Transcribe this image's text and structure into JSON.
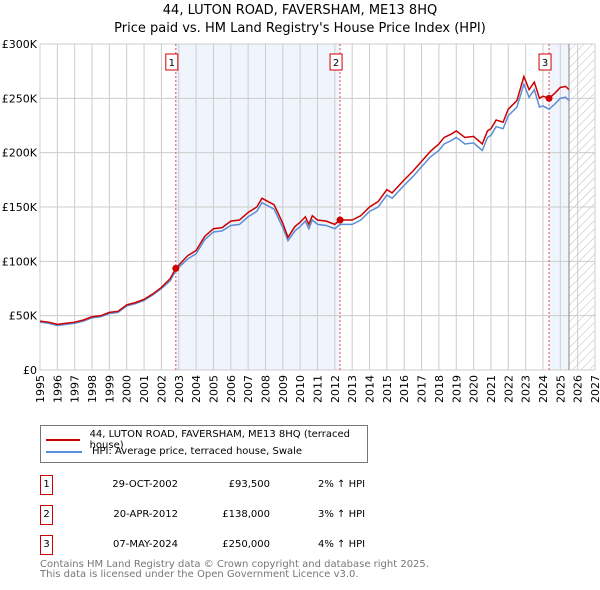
{
  "chart_data": {
    "type": "line",
    "title": "44, LUTON ROAD, FAVERSHAM, ME13 8HQ",
    "subtitle": "Price paid vs. HM Land Registry's House Price Index (HPI)",
    "xlim": [
      1995,
      2027
    ],
    "ylim": [
      0,
      300000
    ],
    "yticks": [
      {
        "v": 0,
        "label": "£0"
      },
      {
        "v": 50000,
        "label": "£50K"
      },
      {
        "v": 100000,
        "label": "£100K"
      },
      {
        "v": 150000,
        "label": "£150K"
      },
      {
        "v": 200000,
        "label": "£200K"
      },
      {
        "v": 250000,
        "label": "£250K"
      },
      {
        "v": 300000,
        "label": "£300K"
      }
    ],
    "xticks": [
      1995,
      1996,
      1997,
      1998,
      1999,
      2000,
      2001,
      2002,
      2003,
      2004,
      2005,
      2006,
      2007,
      2008,
      2009,
      2010,
      2011,
      2012,
      2013,
      2014,
      2015,
      2016,
      2017,
      2018,
      2019,
      2020,
      2021,
      2022,
      2023,
      2024,
      2025,
      2026,
      2027
    ],
    "data_end": 2025.5,
    "series": [
      {
        "name": "44, LUTON ROAD, FAVERSHAM, ME13 8HQ (terraced house)",
        "color": "#cc0000",
        "x": [
          1995,
          1995.5,
          1996,
          1996.5,
          1997,
          1997.5,
          1998,
          1998.5,
          1999,
          1999.5,
          2000,
          2000.5,
          2001,
          2001.5,
          2002,
          2002.5,
          2002.83,
          2003.5,
          2004,
          2004.5,
          2005,
          2005.5,
          2006,
          2006.5,
          2007,
          2007.5,
          2007.8,
          2008.5,
          2009,
          2009.3,
          2009.7,
          2010,
          2010.3,
          2010.5,
          2010.7,
          2011,
          2011.5,
          2012,
          2012.3,
          2013,
          2013.5,
          2014,
          2014.5,
          2015,
          2015.3,
          2016,
          2016.5,
          2017,
          2017.5,
          2018,
          2018.3,
          2018.7,
          2019,
          2019.5,
          2020,
          2020.5,
          2020.8,
          2021,
          2021.3,
          2021.7,
          2022,
          2022.5,
          2022.9,
          2023.2,
          2023.5,
          2023.8,
          2024,
          2024.35,
          2024.7,
          2025,
          2025.3,
          2025.5
        ],
        "y": [
          45000,
          44000,
          42000,
          43000,
          44000,
          46000,
          49000,
          50000,
          53000,
          54000,
          60000,
          62000,
          65000,
          70000,
          76000,
          84000,
          93500,
          105000,
          110000,
          123000,
          130000,
          131000,
          137000,
          138000,
          145000,
          150000,
          158000,
          152000,
          135000,
          122000,
          132000,
          136000,
          141000,
          134000,
          142000,
          138000,
          137000,
          134000,
          138000,
          138000,
          142000,
          150000,
          155000,
          166000,
          163000,
          175000,
          183000,
          192000,
          201000,
          208000,
          214000,
          217000,
          220000,
          214000,
          215000,
          208000,
          220000,
          222000,
          230000,
          228000,
          240000,
          248000,
          270000,
          258000,
          265000,
          250000,
          252000,
          250000,
          255000,
          260000,
          261000,
          258000
        ]
      },
      {
        "name": "HPI: Average price, terraced house, Swale",
        "color": "#5b8ed6",
        "x": [
          1995,
          1995.5,
          1996,
          1996.5,
          1997,
          1997.5,
          1998,
          1998.5,
          1999,
          1999.5,
          2000,
          2000.5,
          2001,
          2001.5,
          2002,
          2002.5,
          2002.83,
          2003.5,
          2004,
          2004.5,
          2005,
          2005.5,
          2006,
          2006.5,
          2007,
          2007.5,
          2007.8,
          2008.5,
          2009,
          2009.3,
          2009.7,
          2010,
          2010.3,
          2010.5,
          2010.7,
          2011,
          2011.5,
          2012,
          2012.3,
          2013,
          2013.5,
          2014,
          2014.5,
          2015,
          2015.3,
          2016,
          2016.5,
          2017,
          2017.5,
          2018,
          2018.3,
          2018.7,
          2019,
          2019.5,
          2020,
          2020.5,
          2020.8,
          2021,
          2021.3,
          2021.7,
          2022,
          2022.5,
          2022.9,
          2023.2,
          2023.5,
          2023.8,
          2024,
          2024.35,
          2024.7,
          2025,
          2025.3,
          2025.5
        ],
        "y": [
          44000,
          43000,
          41000,
          42000,
          43000,
          45000,
          48000,
          49000,
          52000,
          53000,
          59000,
          61000,
          64000,
          69000,
          75000,
          82000,
          91700,
          102000,
          107000,
          120000,
          127000,
          128000,
          133000,
          134000,
          141000,
          146000,
          154000,
          148000,
          131000,
          119000,
          128000,
          132000,
          137000,
          130000,
          138000,
          134000,
          133000,
          130000,
          134000,
          134000,
          138000,
          146000,
          150000,
          161000,
          158000,
          170000,
          178000,
          187000,
          196000,
          202000,
          208000,
          211000,
          214000,
          208000,
          209000,
          202000,
          214000,
          216000,
          224000,
          222000,
          234000,
          242000,
          263000,
          251000,
          258000,
          242000,
          243000,
          240000,
          245000,
          250000,
          251000,
          248000
        ]
      }
    ],
    "sales": [
      {
        "n": "1",
        "x": 2002.83,
        "y": 93500,
        "date": "29-OCT-2002",
        "price": "£93,500",
        "hpi": "2% ↑ HPI"
      },
      {
        "n": "2",
        "x": 2012.3,
        "y": 138000,
        "date": "20-APR-2012",
        "price": "£138,000",
        "hpi": "3% ↑ HPI"
      },
      {
        "n": "3",
        "x": 2024.35,
        "y": 250000,
        "date": "07-MAY-2024",
        "price": "£250,000",
        "hpi": "4% ↑ HPI"
      }
    ]
  },
  "footer": {
    "line1": "Contains HM Land Registry data © Crown copyright and database right 2025.",
    "line2": "This data is licensed under the Open Government Licence v3.0."
  }
}
